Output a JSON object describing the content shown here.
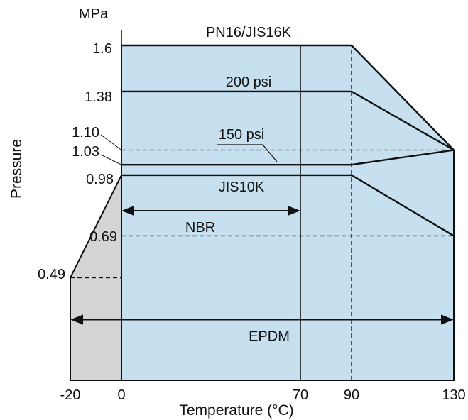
{
  "chart_data": {
    "type": "line",
    "ylabel": "Pressure",
    "yunit": "MPa",
    "xlabel": "Temperature (°C)",
    "xlim": [
      -20,
      130
    ],
    "ylim": [
      0,
      1.6
    ],
    "x_ticks": [
      -20,
      0,
      70,
      90,
      130
    ],
    "x_tick_labels": [
      "-20",
      "0",
      "70",
      "90",
      "130"
    ],
    "y_ticks": [
      0.49,
      0.69,
      0.98,
      1.03,
      1.1,
      1.38,
      1.6
    ],
    "y_tick_labels": [
      "0.49",
      "0.69",
      "0.98",
      "1.03",
      "1.10",
      "1.38",
      "1.6"
    ],
    "series": [
      {
        "name": "PN16/JIS16K",
        "points": [
          [
            0,
            1.6
          ],
          [
            90,
            1.6
          ],
          [
            130,
            1.1
          ]
        ]
      },
      {
        "name": "200 psi",
        "points": [
          [
            0,
            1.38
          ],
          [
            90,
            1.38
          ],
          [
            130,
            1.1
          ]
        ]
      },
      {
        "name": "150 psi",
        "points": [
          [
            0,
            1.03
          ],
          [
            90,
            1.03
          ],
          [
            130,
            1.1
          ]
        ]
      },
      {
        "name": "JIS10K",
        "points": [
          [
            0,
            0.98
          ],
          [
            90,
            0.98
          ],
          [
            130,
            0.69
          ]
        ]
      }
    ],
    "ranges": [
      {
        "name": "NBR",
        "from": 0,
        "to": 70
      },
      {
        "name": "EPDM",
        "from": -20,
        "to": 130
      }
    ],
    "regions": [
      {
        "name": "positive temperature range",
        "color": "#c7e0ef",
        "points": [
          [
            0,
            0
          ],
          [
            0,
            1.6
          ],
          [
            90,
            1.6
          ],
          [
            130,
            1.1
          ],
          [
            130,
            0
          ]
        ]
      },
      {
        "name": "low temperature range",
        "color": "#d4d4d4",
        "points": [
          [
            -20,
            0
          ],
          [
            -20,
            0.49
          ],
          [
            0,
            0.98
          ],
          [
            0,
            0
          ]
        ]
      }
    ],
    "reference_lines": [
      {
        "y": 1.1,
        "x_from": 0,
        "x_to": 130
      },
      {
        "y": 0.69,
        "x_from": 0,
        "x_to": 130
      },
      {
        "y": 0.49,
        "x_from": -20,
        "x_to": 0
      },
      {
        "x": 90,
        "y_from": 0,
        "y_to": 1.6
      }
    ],
    "solid_verticals": [
      0,
      70,
      130
    ],
    "colors": {
      "blue_fill": "#c7e0ef",
      "gray_fill": "#d4d4d4",
      "line": "#111111"
    }
  }
}
